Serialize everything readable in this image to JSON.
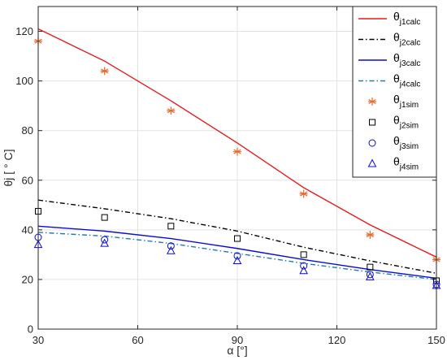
{
  "chart_data": {
    "type": "line",
    "x_values": [
      30,
      50,
      70,
      90,
      110,
      130,
      150
    ],
    "xlim": [
      30,
      150
    ],
    "ylim": [
      0,
      130
    ],
    "x_ticks": [
      "30",
      "60",
      "90",
      "120",
      "150"
    ],
    "y_ticks": [
      "0",
      "20",
      "40",
      "60",
      "80",
      "100",
      "120"
    ],
    "xlabel": "α [°]",
    "ylabel": "θj [ ° C]",
    "grid": true,
    "legend_position": "top-right",
    "series": [
      {
        "name": "θj1calc",
        "kind": "line",
        "style": "solid",
        "color": "#e8191b",
        "values": [
          121,
          108,
          92,
          75,
          57,
          42,
          29
        ]
      },
      {
        "name": "θj2calc",
        "kind": "line",
        "style": "dashdot",
        "color": "#000000",
        "values": [
          52,
          48.5,
          44.5,
          39.5,
          33,
          27.5,
          22.5
        ]
      },
      {
        "name": "θj3calc",
        "kind": "line",
        "style": "solid",
        "color": "#0b0bd6",
        "values": [
          41.5,
          39.5,
          36.5,
          32.5,
          28,
          24,
          20.5
        ]
      },
      {
        "name": "θj4calc",
        "kind": "line",
        "style": "dashdot",
        "color": "#1a7bbd",
        "values": [
          39,
          37.5,
          34.5,
          30.5,
          26.5,
          23,
          20
        ]
      },
      {
        "name": "θj1sim",
        "kind": "marker",
        "marker": "asterisk",
        "color": "#e86a2a",
        "values": [
          116,
          104,
          88,
          71.5,
          54.5,
          38,
          28
        ]
      },
      {
        "name": "θj2sim",
        "kind": "marker",
        "marker": "square",
        "color": "#000000",
        "values": [
          47.5,
          45,
          41.5,
          36.5,
          30,
          25,
          19.5
        ]
      },
      {
        "name": "θj3sim",
        "kind": "marker",
        "marker": "circle",
        "color": "#0b0bd6",
        "values": [
          37,
          36,
          33.5,
          29.5,
          25.5,
          22,
          18
        ]
      },
      {
        "name": "θj4sim",
        "kind": "marker",
        "marker": "triangle",
        "color": "#0b0bd6",
        "values": [
          34,
          34.5,
          31.5,
          27.5,
          23.5,
          21,
          17.5
        ]
      }
    ]
  }
}
